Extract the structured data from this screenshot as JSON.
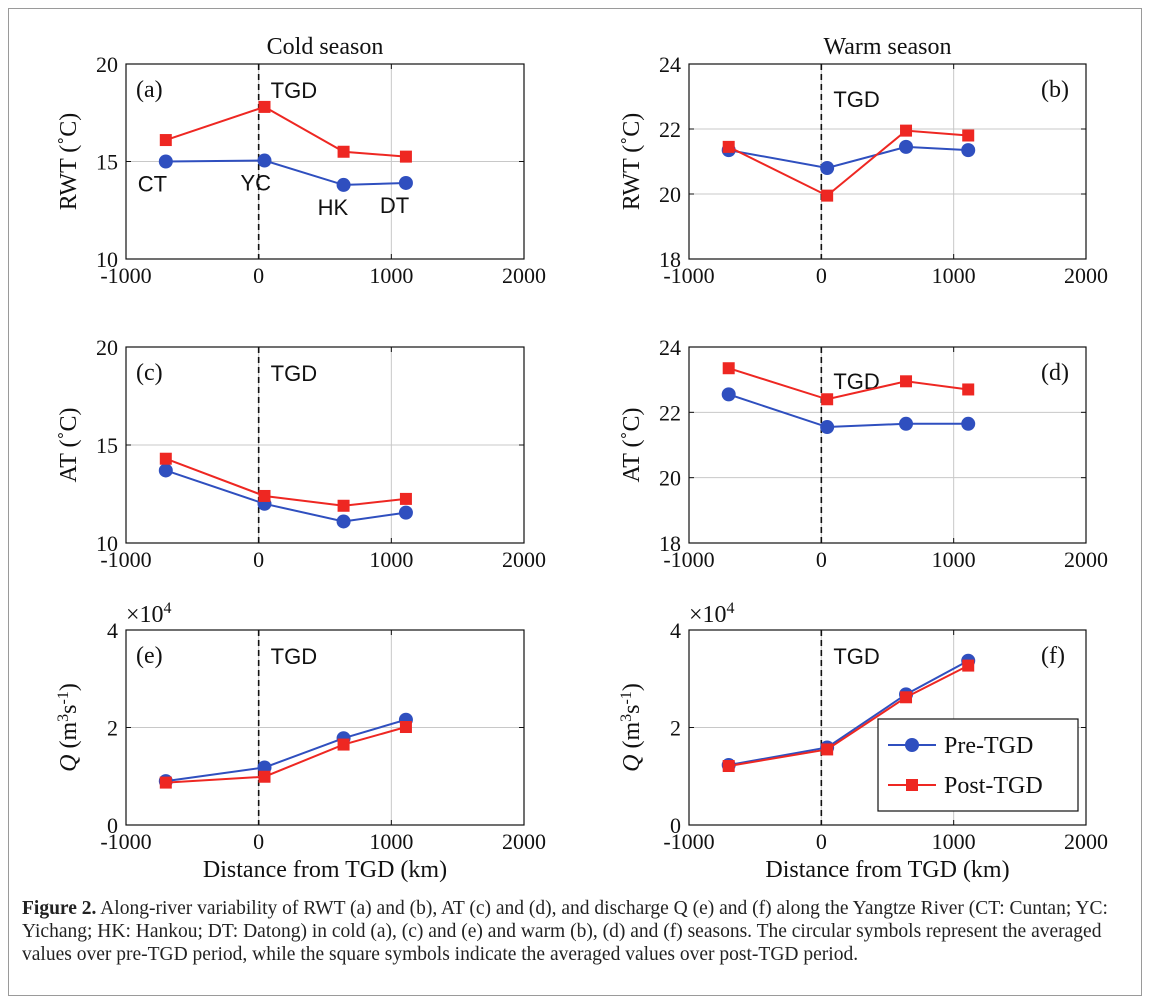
{
  "caption": {
    "label": "Figure 2.",
    "text": "Along-river variability of RWT (a) and (b), AT (c) and (d), and discharge Q (e) and (f) along the Yangtze River (CT: Cuntan; YC: Yichang; HK: Hankou; DT: Datong) in cold (a), (c) and (e) and warm (b), (d) and (f) seasons. The circular symbols represent the averaged values over pre-TGD period, while the square symbols indicate the averaged values over post-TGD period."
  },
  "colors": {
    "pre": "#2f4fbf",
    "post": "#ee2722",
    "grid": "#c8c8c8",
    "axis": "#111111"
  },
  "legend": {
    "pre": "Pre-TGD",
    "post": "Post-TGD"
  },
  "chart_data": [
    {
      "id": "a",
      "type": "line",
      "title": "Cold season",
      "panel_label": "(a)",
      "xlabel": "",
      "ylabel": "RWT (˚C)",
      "xlim": [
        -1000,
        2000
      ],
      "ylim": [
        10,
        20
      ],
      "xticks": [
        "-1000",
        "0",
        "1000",
        "2000"
      ],
      "yticks": [
        "10",
        "15",
        "20"
      ],
      "tgd_label": "TGD",
      "x": [
        -700,
        44,
        640,
        1110
      ],
      "station_labels": [
        "CT",
        "YC",
        "HK",
        "DT"
      ],
      "series": [
        {
          "name": "Pre-TGD",
          "marker": "circle",
          "values": [
            15.0,
            15.05,
            13.8,
            13.9
          ]
        },
        {
          "name": "Post-TGD",
          "marker": "square",
          "values": [
            16.1,
            17.8,
            15.5,
            15.25
          ]
        }
      ]
    },
    {
      "id": "b",
      "type": "line",
      "title": "Warm season",
      "panel_label": "(b)",
      "xlabel": "",
      "ylabel": "RWT (˚C)",
      "xlim": [
        -1000,
        2000
      ],
      "ylim": [
        18,
        24
      ],
      "xticks": [
        "-1000",
        "0",
        "1000",
        "2000"
      ],
      "yticks": [
        "18",
        "20",
        "22",
        "24"
      ],
      "tgd_label": "TGD",
      "x": [
        -700,
        44,
        640,
        1110
      ],
      "series": [
        {
          "name": "Pre-TGD",
          "marker": "circle",
          "values": [
            21.35,
            20.8,
            21.45,
            21.35
          ]
        },
        {
          "name": "Post-TGD",
          "marker": "square",
          "values": [
            21.45,
            19.95,
            21.95,
            21.8
          ]
        }
      ]
    },
    {
      "id": "c",
      "type": "line",
      "title": "",
      "panel_label": "(c)",
      "xlabel": "",
      "ylabel": "AT (˚C)",
      "xlim": [
        -1000,
        2000
      ],
      "ylim": [
        10,
        20
      ],
      "xticks": [
        "-1000",
        "0",
        "1000",
        "2000"
      ],
      "yticks": [
        "10",
        "15",
        "20"
      ],
      "tgd_label": "TGD",
      "x": [
        -700,
        44,
        640,
        1110
      ],
      "series": [
        {
          "name": "Pre-TGD",
          "marker": "circle",
          "values": [
            13.7,
            12.0,
            11.1,
            11.55
          ]
        },
        {
          "name": "Post-TGD",
          "marker": "square",
          "values": [
            14.3,
            12.4,
            11.9,
            12.25
          ]
        }
      ]
    },
    {
      "id": "d",
      "type": "line",
      "title": "",
      "panel_label": "(d)",
      "xlabel": "",
      "ylabel": "AT (˚C)",
      "xlim": [
        -1000,
        2000
      ],
      "ylim": [
        18,
        24
      ],
      "xticks": [
        "-1000",
        "0",
        "1000",
        "2000"
      ],
      "yticks": [
        "18",
        "20",
        "22",
        "24"
      ],
      "tgd_label": "TGD",
      "x": [
        -700,
        44,
        640,
        1110
      ],
      "series": [
        {
          "name": "Pre-TGD",
          "marker": "circle",
          "values": [
            22.55,
            21.55,
            21.65,
            21.65
          ]
        },
        {
          "name": "Post-TGD",
          "marker": "square",
          "values": [
            23.35,
            22.4,
            22.95,
            22.7
          ]
        }
      ]
    },
    {
      "id": "e",
      "type": "line",
      "title": "",
      "panel_label": "(e)",
      "xlabel": "Distance from TGD (km)",
      "ylabel": "Q (m3s-1)",
      "exponent": "×10",
      "exponent_power": "4",
      "xlim": [
        -1000,
        2000
      ],
      "ylim": [
        0,
        40000
      ],
      "xticks": [
        "-1000",
        "0",
        "1000",
        "2000"
      ],
      "yticks": [
        "0",
        "2",
        "4"
      ],
      "tgd_label": "TGD",
      "x": [
        -700,
        44,
        640,
        1110
      ],
      "series": [
        {
          "name": "Pre-TGD",
          "marker": "circle",
          "values": [
            9000,
            11800,
            17800,
            21600
          ]
        },
        {
          "name": "Post-TGD",
          "marker": "square",
          "values": [
            8700,
            9900,
            16500,
            20100
          ]
        }
      ]
    },
    {
      "id": "f",
      "type": "line",
      "title": "",
      "panel_label": "(f)",
      "xlabel": "Distance from TGD (km)",
      "ylabel": "Q (m3s-1)",
      "exponent": "×10",
      "exponent_power": "4",
      "xlim": [
        -1000,
        2000
      ],
      "ylim": [
        0,
        40000
      ],
      "xticks": [
        "-1000",
        "0",
        "1000",
        "2000"
      ],
      "yticks": [
        "0",
        "2",
        "4"
      ],
      "tgd_label": "TGD",
      "legend": "bottom-right",
      "x": [
        -700,
        44,
        640,
        1110
      ],
      "series": [
        {
          "name": "Pre-TGD",
          "marker": "circle",
          "values": [
            12300,
            15900,
            26800,
            33700
          ]
        },
        {
          "name": "Post-TGD",
          "marker": "square",
          "values": [
            12100,
            15500,
            26200,
            32700
          ]
        }
      ]
    }
  ]
}
